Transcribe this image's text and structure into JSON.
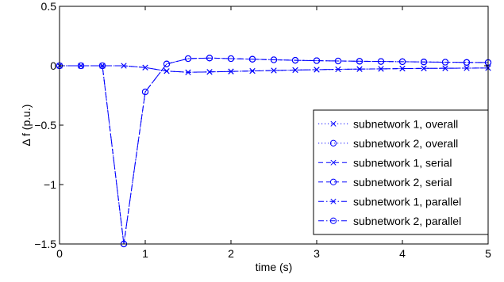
{
  "chart_data": {
    "type": "line",
    "title": "",
    "xlabel": "time (s)",
    "ylabel": "Δ f (p.u.)",
    "xlim": [
      0,
      5
    ],
    "ylim": [
      -1.5,
      0.5
    ],
    "grid": false,
    "legend_position": "bottom-right",
    "line_color": "#0000ff",
    "x_ticks": [
      {
        "value": 0,
        "label": "0"
      },
      {
        "value": 1,
        "label": "1"
      },
      {
        "value": 2,
        "label": "2"
      },
      {
        "value": 3,
        "label": "3"
      },
      {
        "value": 4,
        "label": "4"
      },
      {
        "value": 5,
        "label": "5"
      }
    ],
    "y_ticks": [
      {
        "value": 0.5,
        "label": "0.5"
      },
      {
        "value": 0,
        "label": "0"
      },
      {
        "value": -0.5,
        "label": "−0.5"
      },
      {
        "value": -1,
        "label": "−1"
      },
      {
        "value": -1.5,
        "label": "−1.5"
      }
    ],
    "series": [
      {
        "name": "subnetwork 1, overall",
        "marker": "x",
        "dash": "dotted",
        "x": [
          0,
          0.25,
          0.5,
          0.75,
          1.0,
          1.25,
          1.5,
          1.75,
          2.0,
          2.25,
          2.5,
          2.75,
          3.0,
          3.25,
          3.5,
          3.75,
          4.0,
          4.25,
          4.5,
          4.75,
          5.0
        ],
        "y": [
          0,
          0,
          0,
          0,
          -0.015,
          -0.045,
          -0.055,
          -0.052,
          -0.048,
          -0.044,
          -0.04,
          -0.036,
          -0.033,
          -0.03,
          -0.028,
          -0.026,
          -0.024,
          -0.022,
          -0.021,
          -0.02,
          -0.019
        ]
      },
      {
        "name": "subnetwork 2, overall",
        "marker": "o",
        "dash": "dotted",
        "x": [
          0,
          0.25,
          0.5,
          0.75,
          1.0,
          1.25,
          1.5,
          1.75,
          2.0,
          2.25,
          2.5,
          2.75,
          3.0,
          3.25,
          3.5,
          3.75,
          4.0,
          4.25,
          4.5,
          4.75,
          5.0
        ],
        "y": [
          0,
          0,
          0,
          -1.5,
          -0.22,
          0.015,
          0.06,
          0.065,
          0.06,
          0.055,
          0.05,
          0.046,
          0.043,
          0.04,
          0.038,
          0.036,
          0.034,
          0.032,
          0.03,
          0.028,
          0.027
        ]
      },
      {
        "name": "subnetwork 1, serial",
        "marker": "x",
        "dash": "dashed",
        "x": [
          0,
          0.25,
          0.5,
          0.75,
          1.0,
          1.25,
          1.5,
          1.75,
          2.0,
          2.25,
          2.5,
          2.75,
          3.0,
          3.25,
          3.5,
          3.75,
          4.0,
          4.25,
          4.5,
          4.75,
          5.0
        ],
        "y": [
          0,
          0,
          0,
          0,
          -0.015,
          -0.045,
          -0.055,
          -0.052,
          -0.048,
          -0.044,
          -0.04,
          -0.036,
          -0.033,
          -0.03,
          -0.028,
          -0.026,
          -0.024,
          -0.022,
          -0.021,
          -0.02,
          -0.019
        ]
      },
      {
        "name": "subnetwork 2, serial",
        "marker": "o",
        "dash": "dashed",
        "x": [
          0,
          0.25,
          0.5,
          0.75,
          1.0,
          1.25,
          1.5,
          1.75,
          2.0,
          2.25,
          2.5,
          2.75,
          3.0,
          3.25,
          3.5,
          3.75,
          4.0,
          4.25,
          4.5,
          4.75,
          5.0
        ],
        "y": [
          0,
          0,
          0,
          -1.5,
          -0.22,
          0.015,
          0.06,
          0.065,
          0.06,
          0.055,
          0.05,
          0.046,
          0.043,
          0.04,
          0.038,
          0.036,
          0.034,
          0.032,
          0.03,
          0.028,
          0.027
        ]
      },
      {
        "name": "subnetwork 1, parallel",
        "marker": "x",
        "dash": "dashdot",
        "x": [
          0,
          0.25,
          0.5,
          0.75,
          1.0,
          1.25,
          1.5,
          1.75,
          2.0,
          2.25,
          2.5,
          2.75,
          3.0,
          3.25,
          3.5,
          3.75,
          4.0,
          4.25,
          4.5,
          4.75,
          5.0
        ],
        "y": [
          0,
          0,
          0,
          0,
          -0.015,
          -0.045,
          -0.055,
          -0.052,
          -0.048,
          -0.044,
          -0.04,
          -0.036,
          -0.033,
          -0.03,
          -0.028,
          -0.026,
          -0.024,
          -0.022,
          -0.021,
          -0.02,
          -0.019
        ]
      },
      {
        "name": "subnetwork 2, parallel",
        "marker": "o",
        "dash": "dashdot",
        "x": [
          0,
          0.25,
          0.5,
          0.75,
          1.0,
          1.25,
          1.5,
          1.75,
          2.0,
          2.25,
          2.5,
          2.75,
          3.0,
          3.25,
          3.5,
          3.75,
          4.0,
          4.25,
          4.5,
          4.75,
          5.0
        ],
        "y": [
          0,
          0,
          0,
          -1.5,
          -0.22,
          0.015,
          0.06,
          0.065,
          0.06,
          0.055,
          0.05,
          0.046,
          0.043,
          0.04,
          0.038,
          0.036,
          0.034,
          0.032,
          0.03,
          0.028,
          0.027
        ]
      }
    ]
  }
}
